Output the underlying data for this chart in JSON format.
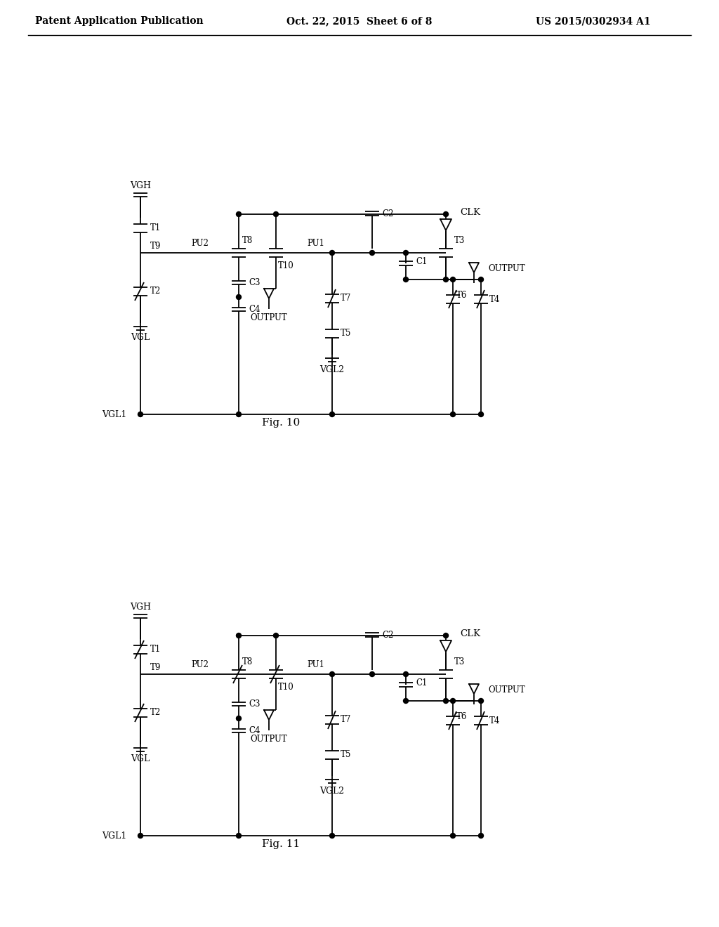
{
  "title_left": "Patent Application Publication",
  "title_center": "Oct. 22, 2015  Sheet 6 of 8",
  "title_right": "US 2015/0302934 A1",
  "fig10_label": "Fig. 10",
  "fig11_label": "Fig. 11",
  "background": "#ffffff",
  "line_color": "#000000",
  "header_fontsize": 10,
  "label_fontsize": 8.5,
  "fig_label_fontsize": 11
}
